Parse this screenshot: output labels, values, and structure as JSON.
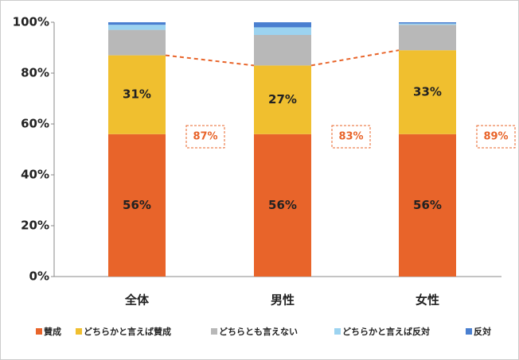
{
  "chart_data": {
    "type": "stacked_bar",
    "categories": [
      "全体",
      "男性",
      "女性"
    ],
    "series": [
      {
        "name": "賛成",
        "color": "#e8642a",
        "values": [
          56,
          56,
          56
        ],
        "value_labels": [
          "56%",
          "56%",
          "56%"
        ]
      },
      {
        "name": "どちらかと言えば賛成",
        "color": "#f0bf2f",
        "values": [
          31,
          27,
          33
        ],
        "value_labels": [
          "31%",
          "27%",
          "33%"
        ]
      },
      {
        "name": "どちらとも言えない",
        "color": "#b8b8b8",
        "values": [
          10,
          12,
          10
        ]
      },
      {
        "name": "どちらかと言えば反対",
        "color": "#9cd3f0",
        "values": [
          2,
          3,
          0.5
        ]
      },
      {
        "name": "反対",
        "color": "#4a7fd0",
        "values": [
          1,
          2,
          0.5
        ]
      }
    ],
    "annotations": [
      {
        "value": 87,
        "label": "87%"
      },
      {
        "value": 83,
        "label": "83%"
      },
      {
        "value": 89,
        "label": "89%"
      }
    ],
    "ylim": [
      0,
      100
    ],
    "yticks": [
      {
        "value": 0,
        "label": "0%"
      },
      {
        "value": 20,
        "label": "20%"
      },
      {
        "value": 40,
        "label": "40%"
      },
      {
        "value": 60,
        "label": "60%"
      },
      {
        "value": 80,
        "label": "80%"
      },
      {
        "value": 100,
        "label": "100%"
      }
    ],
    "legend": "bottom"
  }
}
